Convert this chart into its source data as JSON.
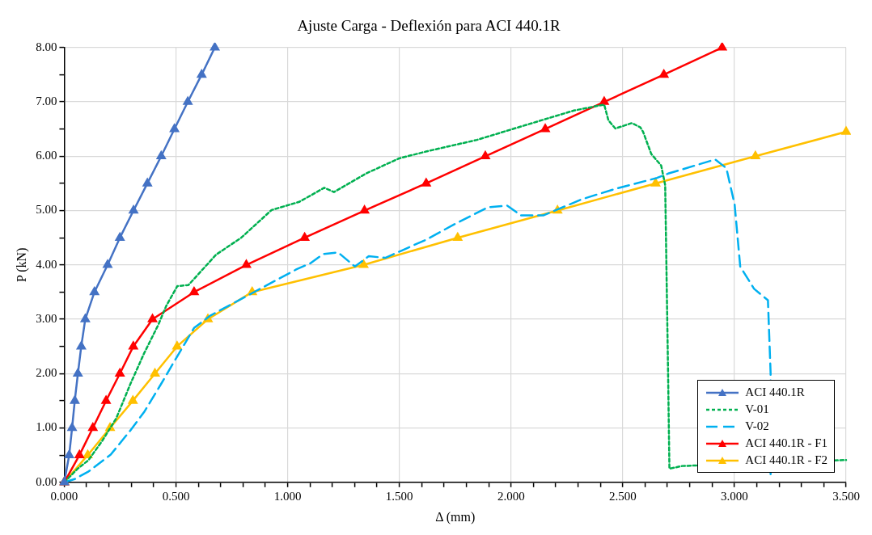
{
  "chart_data": {
    "type": "line",
    "title": "Ajuste Carga - Deflexión para ACI 440.1R",
    "xlabel": "Δ (mm)",
    "ylabel": "P (kN)",
    "xlim": [
      0,
      3.5
    ],
    "ylim": [
      0,
      8
    ],
    "xticks": [
      {
        "value": 0,
        "label": "0.000"
      },
      {
        "value": 0.1,
        "label": null
      },
      {
        "value": 0.2,
        "label": null
      },
      {
        "value": 0.3,
        "label": null
      },
      {
        "value": 0.4,
        "label": null
      },
      {
        "value": 0.5,
        "label": "0.500"
      },
      {
        "value": 0.6,
        "label": null
      },
      {
        "value": 0.7,
        "label": null
      },
      {
        "value": 0.8,
        "label": null
      },
      {
        "value": 0.9,
        "label": null
      },
      {
        "value": 1,
        "label": "1.000"
      },
      {
        "value": 1.1,
        "label": null
      },
      {
        "value": 1.2,
        "label": null
      },
      {
        "value": 1.3,
        "label": null
      },
      {
        "value": 1.4,
        "label": null
      },
      {
        "value": 1.5,
        "label": "1.500"
      },
      {
        "value": 1.6,
        "label": null
      },
      {
        "value": 1.7,
        "label": null
      },
      {
        "value": 1.8,
        "label": null
      },
      {
        "value": 1.9,
        "label": null
      },
      {
        "value": 2,
        "label": "2.000"
      },
      {
        "value": 2.1,
        "label": null
      },
      {
        "value": 2.2,
        "label": null
      },
      {
        "value": 2.3,
        "label": null
      },
      {
        "value": 2.4,
        "label": null
      },
      {
        "value": 2.5,
        "label": "2.500"
      },
      {
        "value": 2.6,
        "label": null
      },
      {
        "value": 2.7,
        "label": null
      },
      {
        "value": 2.8,
        "label": null
      },
      {
        "value": 2.9,
        "label": null
      },
      {
        "value": 3,
        "label": "3.000"
      },
      {
        "value": 3.1,
        "label": null
      },
      {
        "value": 3.2,
        "label": null
      },
      {
        "value": 3.3,
        "label": null
      },
      {
        "value": 3.4,
        "label": null
      },
      {
        "value": 3.5,
        "label": "3.500"
      }
    ],
    "yticks": [
      {
        "value": 0,
        "label": "0.00"
      },
      {
        "value": 0.5,
        "label": null
      },
      {
        "value": 1,
        "label": "1.00"
      },
      {
        "value": 1.5,
        "label": null
      },
      {
        "value": 2,
        "label": "2.00"
      },
      {
        "value": 2.5,
        "label": null
      },
      {
        "value": 3,
        "label": "3.00"
      },
      {
        "value": 3.5,
        "label": null
      },
      {
        "value": 4,
        "label": "4.00"
      },
      {
        "value": 4.5,
        "label": null
      },
      {
        "value": 5,
        "label": "5.00"
      },
      {
        "value": 5.5,
        "label": null
      },
      {
        "value": 6,
        "label": "6.00"
      },
      {
        "value": 6.5,
        "label": null
      },
      {
        "value": 7,
        "label": "7.00"
      },
      {
        "value": 7.5,
        "label": null
      },
      {
        "value": 8,
        "label": "8.00"
      }
    ],
    "grid": true,
    "legend": "bottom right",
    "series": [
      {
        "name": "ACI 440.1R",
        "color": "#4472c4",
        "marker": "triangle",
        "line_style": "solid",
        "x": [
          0,
          0.022,
          0.035,
          0.047,
          0.061,
          0.076,
          0.094,
          0.135,
          0.194,
          0.249,
          0.31,
          0.372,
          0.434,
          0.493,
          0.553,
          0.615,
          0.674
        ],
        "values": [
          0,
          0.5,
          1,
          1.5,
          2,
          2.5,
          3,
          3.5,
          4,
          4.5,
          5,
          5.5,
          6,
          6.5,
          7,
          7.5,
          8
        ]
      },
      {
        "name": "V-01",
        "color": "#00b050",
        "marker": "none",
        "line_style": "dotted",
        "x": [
          0,
          0.06,
          0.109,
          0.171,
          0.233,
          0.295,
          0.357,
          0.42,
          0.457,
          0.506,
          0.556,
          0.68,
          0.792,
          0.928,
          1.052,
          1.164,
          1.207,
          1.35,
          1.499,
          1.623,
          1.847,
          2.095,
          2.281,
          2.417,
          2.436,
          2.467,
          2.541,
          2.579,
          2.591,
          2.628,
          2.672,
          2.69,
          2.703,
          2.709,
          2.765,
          3.5
        ],
        "values": [
          0,
          0.25,
          0.41,
          0.77,
          1.18,
          1.8,
          2.37,
          2.89,
          3.25,
          3.61,
          3.63,
          4.19,
          4.5,
          5.01,
          5.16,
          5.42,
          5.34,
          5.68,
          5.96,
          6.09,
          6.3,
          6.61,
          6.84,
          6.95,
          6.66,
          6.51,
          6.61,
          6.53,
          6.45,
          6.04,
          5.83,
          5.47,
          2.01,
          0.25,
          0.3,
          0.41
        ]
      },
      {
        "name": "V-02",
        "color": "#00b0f0",
        "marker": "none",
        "line_style": "dashed",
        "x": [
          0,
          0.047,
          0.109,
          0.208,
          0.295,
          0.357,
          0.432,
          0.506,
          0.581,
          0.655,
          0.854,
          1.04,
          1.102,
          1.159,
          1.226,
          1.301,
          1.363,
          1.437,
          1.623,
          1.747,
          1.896,
          1.983,
          2.045,
          2.144,
          2.318,
          2.467,
          2.653,
          2.703,
          2.914,
          2.964,
          3.001,
          3.026,
          3.088,
          3.15,
          3.162,
          3.162
        ],
        "values": [
          0,
          0.06,
          0.2,
          0.51,
          0.95,
          1.29,
          1.8,
          2.32,
          2.84,
          3.07,
          3.51,
          3.92,
          4.03,
          4.2,
          4.23,
          3.97,
          4.16,
          4.13,
          4.47,
          4.75,
          5.06,
          5.09,
          4.91,
          4.91,
          5.21,
          5.4,
          5.6,
          5.68,
          5.94,
          5.78,
          5.11,
          3.97,
          3.56,
          3.35,
          2.01,
          0.15
        ]
      },
      {
        "name": "ACI 440.1R - F1",
        "color": "#ff0000",
        "marker": "triangle",
        "line_style": "solid",
        "x": [
          0,
          0.068,
          0.128,
          0.187,
          0.249,
          0.309,
          0.395,
          0.581,
          0.815,
          1.076,
          1.344,
          1.62,
          1.885,
          2.153,
          2.417,
          2.684,
          2.945
        ],
        "values": [
          0,
          0.5,
          1,
          1.5,
          2,
          2.5,
          3,
          3.5,
          4,
          4.5,
          5,
          5.5,
          6,
          6.5,
          7,
          7.5,
          8
        ]
      },
      {
        "name": "ACI 440.1R - F2",
        "color": "#ffc000",
        "marker": "triangle",
        "line_style": "solid",
        "x": [
          0,
          0.105,
          0.205,
          0.307,
          0.406,
          0.505,
          0.643,
          0.841,
          1.34,
          1.761,
          2.208,
          2.647,
          3.094,
          3.5
        ],
        "values": [
          0,
          0.5,
          1,
          1.5,
          2,
          2.5,
          3,
          3.5,
          4,
          4.5,
          5,
          5.5,
          6,
          6.45
        ]
      }
    ]
  }
}
